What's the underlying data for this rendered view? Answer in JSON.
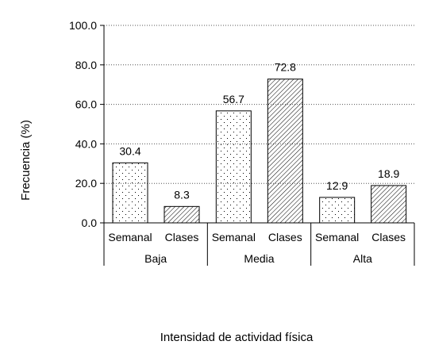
{
  "chart_data": {
    "type": "bar",
    "ylabel": "Frecuencia (%)",
    "xlabel": "Intensidad de actividad física",
    "ylim": [
      0,
      100
    ],
    "yticks": [
      "0.0",
      "20.0",
      "40.0",
      "60.0",
      "80.0",
      "100.0"
    ],
    "grid": "horizontal dotted",
    "groups": [
      {
        "name": "Baja",
        "bars": [
          {
            "category": "Semanal",
            "value": 30.4,
            "label": "30.4",
            "pattern": "dots"
          },
          {
            "category": "Clases",
            "value": 8.3,
            "label": "8.3",
            "pattern": "hatch"
          }
        ]
      },
      {
        "name": "Media",
        "bars": [
          {
            "category": "Semanal",
            "value": 56.7,
            "label": "56.7",
            "pattern": "dots"
          },
          {
            "category": "Clases",
            "value": 72.8,
            "label": "72.8",
            "pattern": "hatch"
          }
        ]
      },
      {
        "name": "Alta",
        "bars": [
          {
            "category": "Semanal",
            "value": 12.9,
            "label": "12.9",
            "pattern": "dots"
          },
          {
            "category": "Clases",
            "value": 18.9,
            "label": "18.9",
            "pattern": "hatch"
          }
        ]
      }
    ]
  }
}
